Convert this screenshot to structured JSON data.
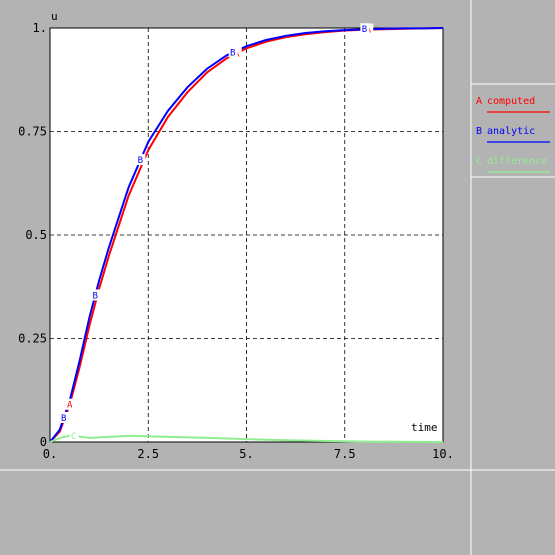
{
  "chart_data": {
    "type": "line",
    "xlabel": "time",
    "ylabel": "u",
    "xlim": [
      0,
      10
    ],
    "ylim": [
      0,
      1
    ],
    "x_ticks": [
      "0.",
      "2.5",
      "5.",
      "7.5",
      "10."
    ],
    "y_ticks": [
      "0",
      "0.25",
      "0.5",
      "0.75",
      "1."
    ],
    "grid": true,
    "legend_position": "right",
    "series": [
      {
        "name": "computed",
        "marker": "A",
        "color": "#ff0000",
        "x": [
          0,
          0.25,
          0.5,
          0.75,
          1.0,
          1.25,
          1.5,
          2.0,
          2.5,
          3.0,
          3.5,
          4.0,
          4.5,
          5.0,
          5.5,
          6.0,
          6.5,
          7.0,
          7.5,
          8.0,
          8.5,
          9.0,
          9.5,
          10.0
        ],
        "y": [
          0,
          0.025,
          0.09,
          0.18,
          0.28,
          0.37,
          0.45,
          0.595,
          0.705,
          0.785,
          0.845,
          0.893,
          0.927,
          0.951,
          0.967,
          0.978,
          0.985,
          0.99,
          0.994,
          0.996,
          0.997,
          0.998,
          0.999,
          1.0
        ],
        "marker_x": [
          0.5,
          4.75,
          8.1
        ]
      },
      {
        "name": "analytic",
        "marker": "B",
        "color": "#0000ff",
        "x": [
          0,
          0.25,
          0.5,
          0.75,
          1.0,
          1.25,
          1.5,
          2.0,
          2.5,
          3.0,
          3.5,
          4.0,
          4.5,
          5.0,
          5.5,
          6.0,
          6.5,
          7.0,
          7.5,
          8.0,
          8.5,
          9.0,
          9.5,
          10.0
        ],
        "y": [
          0,
          0.03,
          0.1,
          0.195,
          0.3,
          0.39,
          0.47,
          0.615,
          0.725,
          0.8,
          0.857,
          0.902,
          0.934,
          0.956,
          0.971,
          0.981,
          0.988,
          0.992,
          0.995,
          0.997,
          0.998,
          0.999,
          0.999,
          1.0
        ],
        "marker_x": [
          0.35,
          1.15,
          2.3,
          4.65,
          8.0
        ]
      },
      {
        "name": "difference",
        "marker": "C",
        "color": "#90ee90",
        "x": [
          0,
          0.25,
          0.5,
          0.75,
          1.0,
          2.0,
          4.0,
          6.0,
          8.0,
          10.0
        ],
        "y": [
          0,
          0.01,
          0.015,
          0.013,
          0.01,
          0.015,
          0.01,
          0.004,
          0.001,
          0
        ],
        "marker_x": [
          0.6
        ]
      }
    ]
  }
}
